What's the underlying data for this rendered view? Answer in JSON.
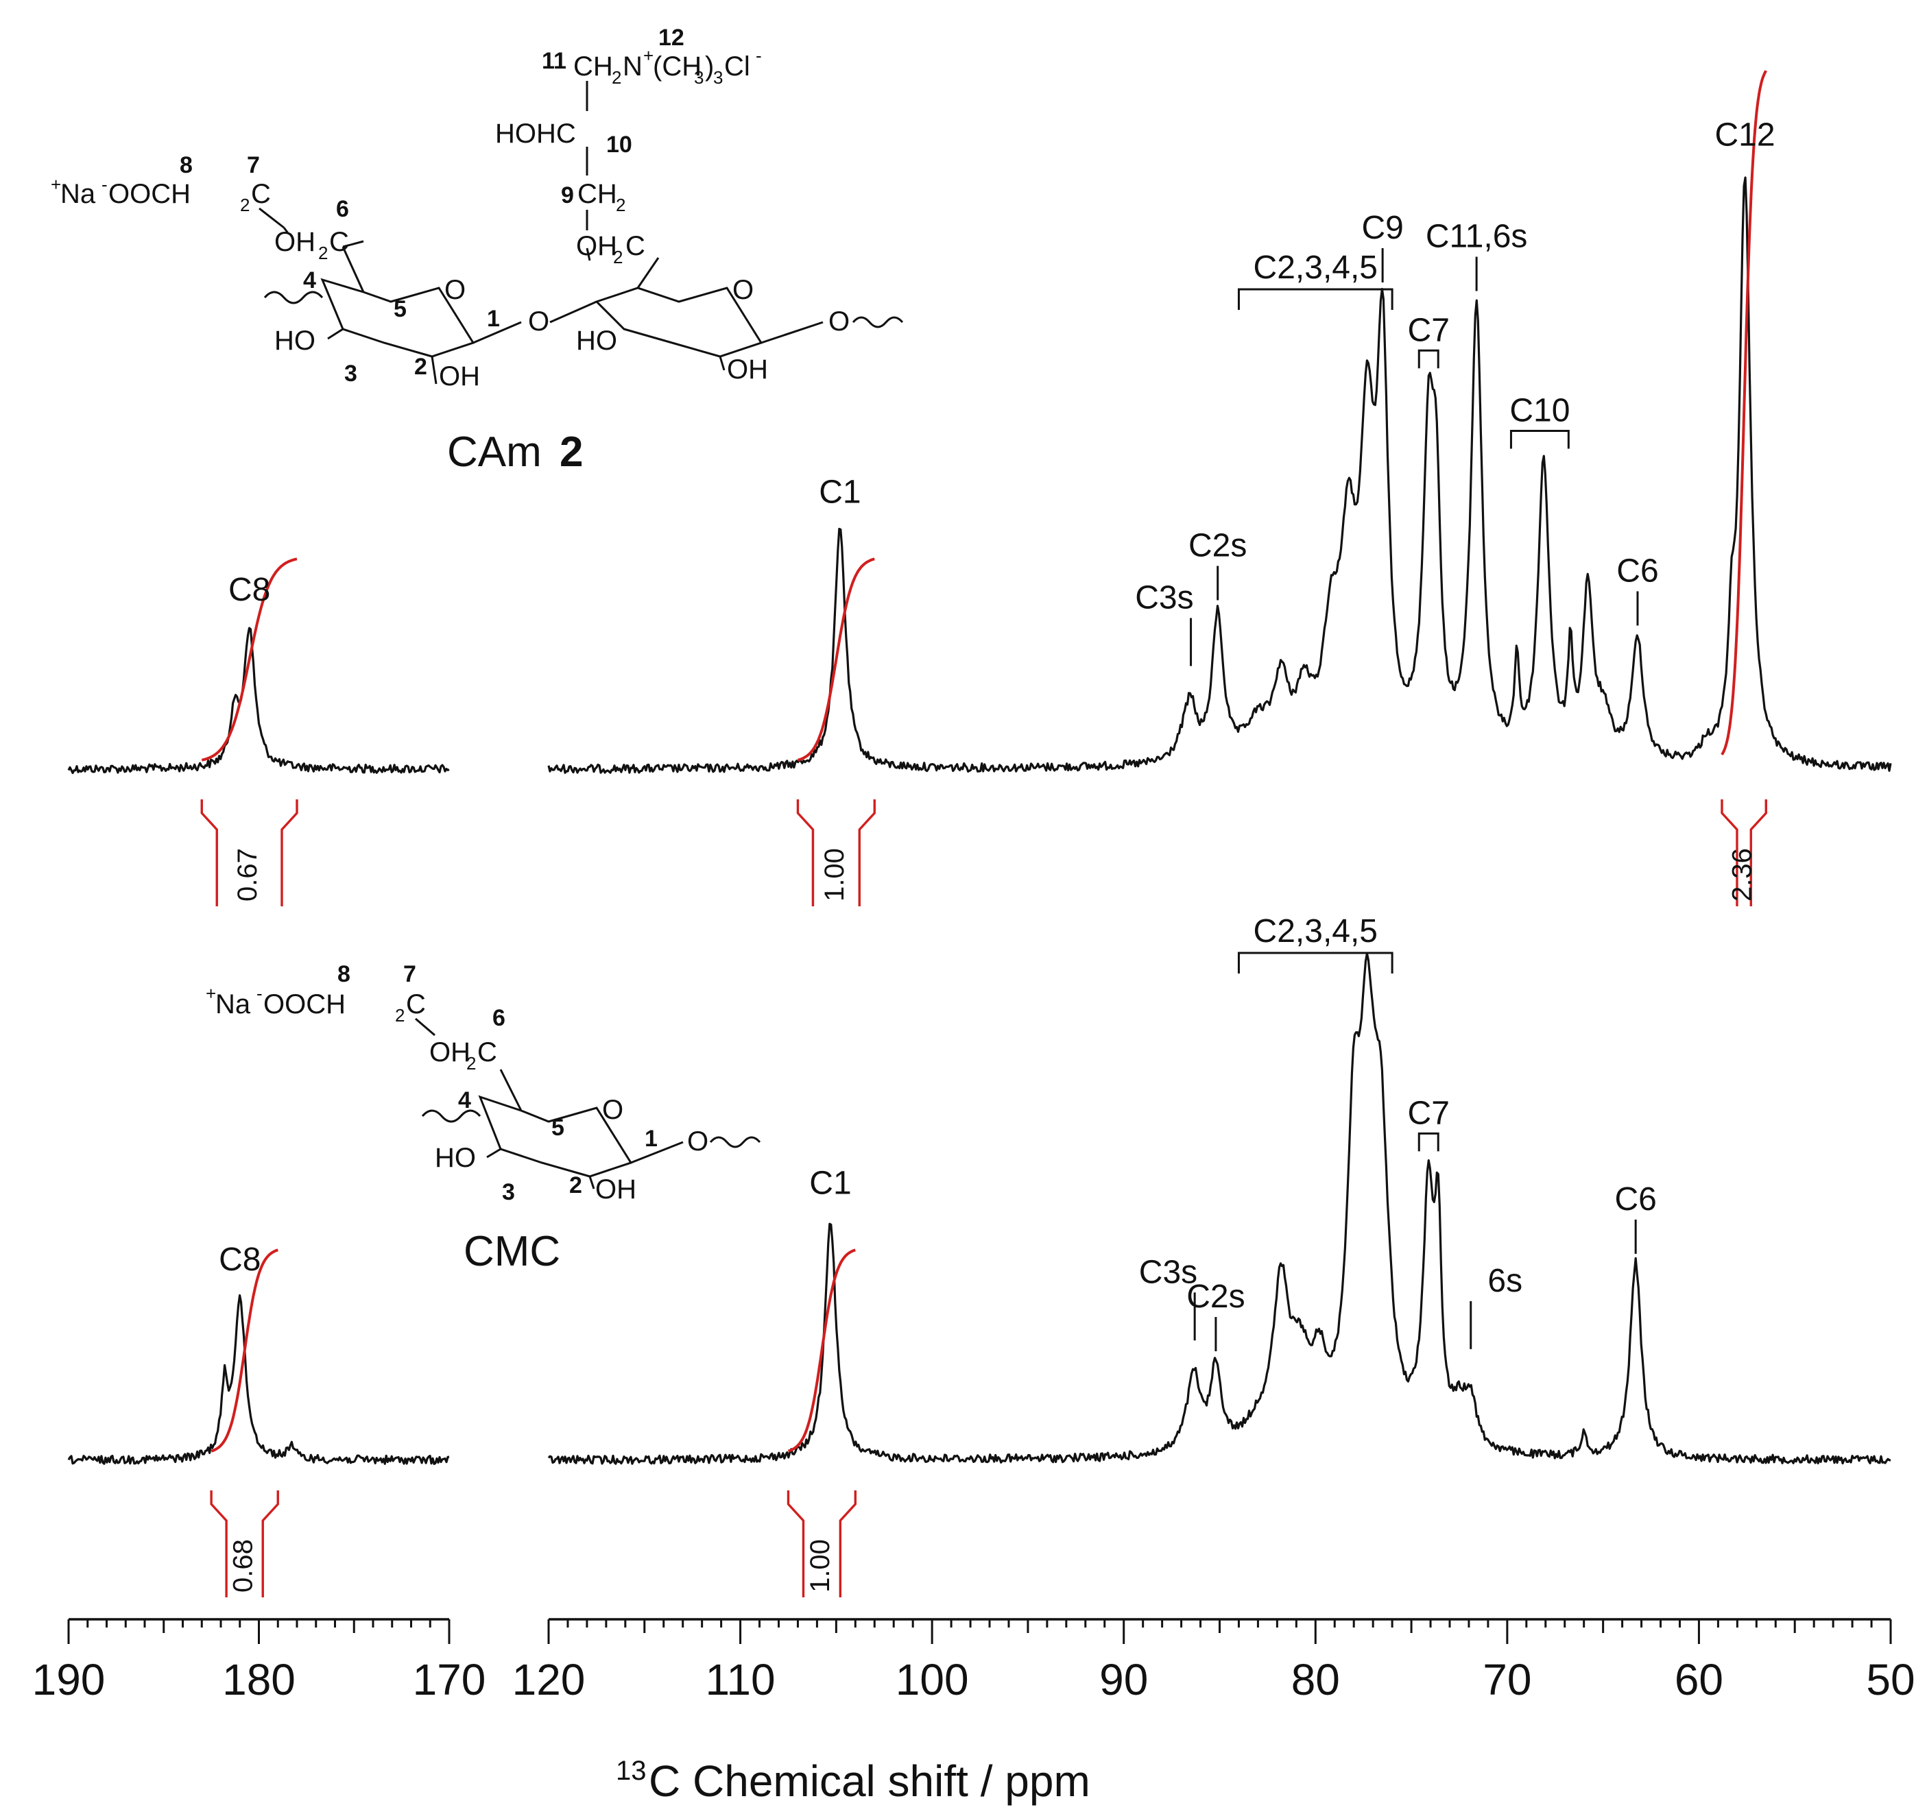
{
  "chart_data": {
    "type": "line",
    "title": "",
    "xlabel_sup": "13",
    "xlabel_main": "C Chemical shift / ppm",
    "x_reversed": true,
    "x_axis_segments": [
      {
        "xlim": [
          190,
          170
        ],
        "tick_labels": [
          "190",
          "180",
          "170"
        ]
      },
      {
        "xlim": [
          120,
          50
        ],
        "tick_labels": [
          "120",
          "110",
          "100",
          "90",
          "80",
          "70",
          "60",
          "50"
        ]
      }
    ],
    "series": [
      {
        "structure": {
          "name_prefix": "CAm ",
          "name_number": "2",
          "chain_lines": [
            {
              "pre": "11",
              "text": "CH",
              "sub": "2",
              "text2": "N",
              "sup2": "+",
              "text3": "(CH",
              "sub3": "3",
              "text4": ")",
              "sub4": "3",
              "text5": "Cl",
              "sup5": "-",
              "sup_number": "12"
            },
            {
              "text": "HOHC",
              "num": "10"
            },
            {
              "pre": "9",
              "text": "CH",
              "sub": "2"
            },
            {
              "text": "OH",
              "sub": "2",
              "text2": "C"
            }
          ],
          "carboxymethyl": {
            "text1": "Na",
            "sup1": "+",
            "sup2": "-",
            "text2": "OOCH",
            "sub2": "2",
            "text3": "C",
            "num8": "8",
            "num7": "7"
          },
          "ring_numbers": [
            "6",
            "5",
            "4",
            "3",
            "2",
            "1"
          ],
          "ring_labels": [
            "OH",
            "HO",
            "O",
            "O",
            "HO",
            "OH",
            "O",
            "O",
            "OH"
          ]
        },
        "peaks": [
          {
            "label": "C8",
            "ppm": 180.5,
            "height": 0.19
          },
          {
            "label": "C1",
            "ppm": 104.8,
            "height": 0.33
          },
          {
            "label": "C3s",
            "ppm": 86.5,
            "height": 0.06
          },
          {
            "label": "C2s",
            "ppm": 85.1,
            "height": 0.2
          },
          {
            "label": "C2,3,4,5",
            "range": [
              84.0,
              76.0
            ]
          },
          {
            "label": "C9",
            "ppm": 76.5,
            "height": 0.52
          },
          {
            "label": "C7",
            "ppm": 74.1,
            "height": 0.42
          },
          {
            "label": "C11,6s",
            "ppm": 71.6,
            "height": 0.62
          },
          {
            "label": "C10",
            "ppm": 68.1,
            "height": 0.41
          },
          {
            "label": "C6",
            "ppm": 63.2,
            "height": 0.17
          },
          {
            "label": "C12",
            "ppm": 57.6,
            "height": 0.8
          }
        ],
        "integrals": [
          {
            "region": [
              183.0,
              178.0
            ],
            "value": "0.67"
          },
          {
            "region": [
              107.0,
              103.0
            ],
            "value": "1.00"
          },
          {
            "region": [
              58.8,
              56.5
            ],
            "value": "2.36"
          }
        ]
      },
      {
        "structure": {
          "name": "CMC",
          "carboxymethyl": {
            "text1": "Na",
            "sup1": "+",
            "sup2": "-",
            "text2": "OOCH",
            "sub2": "2",
            "text3": "C",
            "num8": "8",
            "num7": "7"
          },
          "chain_line": {
            "text": "OH",
            "sub": "2",
            "text2": "C"
          },
          "ring_numbers": [
            "6",
            "5",
            "4",
            "3",
            "2",
            "1"
          ],
          "ring_labels": [
            "HO",
            "OH",
            "O",
            "O"
          ]
        },
        "peaks": [
          {
            "label": "C8",
            "ppm": 181.0,
            "height": 0.22
          },
          {
            "label": "C1",
            "ppm": 105.3,
            "height": 0.33
          },
          {
            "label": "C3s",
            "ppm": 86.3,
            "height": 0.07
          },
          {
            "label": "C2s",
            "ppm": 85.2,
            "height": 0.11
          },
          {
            "label": "C2,3,4,5",
            "range": [
              84.0,
              76.0
            ]
          },
          {
            "label": "C7",
            "ppm": 74.1,
            "height": 0.34
          },
          {
            "label": "6s",
            "ppm": 71.9,
            "height": 0.06
          },
          {
            "label": "C6",
            "ppm": 63.3,
            "height": 0.27
          }
        ],
        "integrals": [
          {
            "region": [
              182.5,
              179.0
            ],
            "value": "0.68"
          },
          {
            "region": [
              107.5,
              104.0
            ],
            "value": "1.00"
          }
        ]
      }
    ]
  }
}
